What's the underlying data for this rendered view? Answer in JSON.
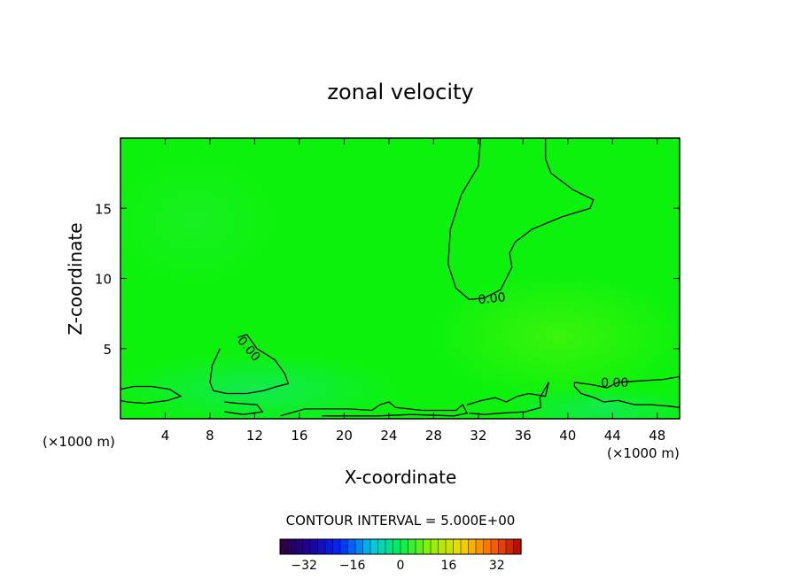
{
  "chart_data": {
    "type": "heatmap",
    "title": "zonal velocity",
    "xlabel": "X-coordinate",
    "ylabel": "Z-coordinate",
    "x_unit_left": "(×1000 m)",
    "x_unit_right": "(×1000 m)",
    "xlim": [
      0,
      50
    ],
    "ylim": [
      0,
      20
    ],
    "xticks": [
      4,
      8,
      12,
      16,
      20,
      24,
      28,
      32,
      36,
      40,
      44,
      48
    ],
    "yticks": [
      5,
      10,
      15
    ],
    "field_fill_color": "#0df20d",
    "contour_label": "0.00",
    "contours_zero": [
      {
        "points": [
          [
            32.2,
            20
          ],
          [
            32,
            18
          ],
          [
            30.5,
            16
          ],
          [
            29.5,
            13.5
          ],
          [
            29.3,
            11
          ],
          [
            30,
            9.3
          ],
          [
            31.2,
            8.5
          ],
          [
            32.5,
            8.6
          ],
          [
            34,
            9.2
          ],
          [
            34.5,
            10
          ],
          [
            35,
            10.8
          ],
          [
            34.8,
            11.8
          ],
          [
            35.3,
            12.6
          ],
          [
            36.8,
            13.5
          ],
          [
            39.5,
            14.4
          ],
          [
            42,
            15
          ],
          [
            42.3,
            15.6
          ],
          [
            40.5,
            16.3
          ],
          [
            38.5,
            17.5
          ],
          [
            38,
            18.5
          ],
          [
            38,
            20
          ]
        ]
      },
      {
        "points": [
          [
            10.5,
            5.8
          ],
          [
            11.3,
            6
          ],
          [
            12.2,
            5
          ],
          [
            13.8,
            4.2
          ],
          [
            14.7,
            3.2
          ],
          [
            15,
            2.5
          ],
          [
            14,
            2.3
          ],
          [
            12.8,
            2
          ],
          [
            11.3,
            1.8
          ],
          [
            9.5,
            1.8
          ],
          [
            8.3,
            2
          ],
          [
            8,
            2.6
          ],
          [
            8.2,
            3.8
          ],
          [
            8.9,
            5
          ]
        ]
      },
      {
        "points": [
          [
            0,
            2.1
          ],
          [
            1.2,
            2.3
          ],
          [
            2.8,
            2.3
          ],
          [
            4.4,
            2.1
          ],
          [
            5.4,
            1.6
          ],
          [
            4.2,
            1.3
          ],
          [
            2.2,
            1.1
          ],
          [
            0.6,
            1.2
          ],
          [
            0,
            1.3
          ]
        ]
      },
      {
        "points": [
          [
            9.3,
            1.2
          ],
          [
            10.5,
            1.1
          ],
          [
            12.2,
            1.0
          ],
          [
            12.7,
            0.5
          ],
          [
            11,
            0.3
          ],
          [
            9.3,
            0.5
          ]
        ]
      },
      {
        "points": [
          [
            14.3,
            0.2
          ],
          [
            16.5,
            0.7
          ],
          [
            20.5,
            0.7
          ],
          [
            22.5,
            0.6
          ],
          [
            23.2,
            1.0
          ],
          [
            24,
            1.2
          ],
          [
            24.6,
            0.8
          ],
          [
            27,
            0.6
          ],
          [
            30,
            0.6
          ],
          [
            30.6,
            1.0
          ],
          [
            31,
            0.4
          ],
          [
            29.8,
            0.2
          ],
          [
            26,
            0.3
          ],
          [
            23,
            0.2
          ],
          [
            18,
            0.2
          ]
        ]
      },
      {
        "points": [
          [
            31,
            1.0
          ],
          [
            32.3,
            1.3
          ],
          [
            33.5,
            1.5
          ],
          [
            34.5,
            1.2
          ],
          [
            35.5,
            1.6
          ],
          [
            36.5,
            1.8
          ],
          [
            38,
            1.6
          ],
          [
            38.3,
            2.6
          ],
          [
            37.5,
            1.5
          ],
          [
            37.6,
            0.8
          ],
          [
            36.2,
            0.5
          ],
          [
            34,
            0.4
          ],
          [
            32.5,
            0.3
          ],
          [
            31.2,
            0.4
          ]
        ]
      },
      {
        "points": [
          [
            50,
            3.0
          ],
          [
            48.5,
            2.8
          ],
          [
            46.5,
            2.7
          ],
          [
            44.5,
            2.6
          ],
          [
            43.5,
            2.2
          ],
          [
            42.4,
            2.4
          ],
          [
            40.6,
            2.6
          ],
          [
            40.6,
            2.3
          ],
          [
            41.2,
            1.8
          ],
          [
            42.4,
            1.5
          ],
          [
            43.2,
            1.2
          ],
          [
            44.5,
            1.3
          ],
          [
            46,
            1.0
          ],
          [
            47.5,
            1.0
          ],
          [
            49,
            0.9
          ],
          [
            50,
            0.8
          ]
        ]
      }
    ],
    "contour_labels": [
      {
        "text": "0.00",
        "x": 33.2,
        "y": 8.6,
        "angle": -6
      },
      {
        "text": "0.00",
        "x": 11.5,
        "y": 5.0,
        "angle": 50
      },
      {
        "text": "0.00",
        "x": 44.2,
        "y": 2.6,
        "angle": 0
      }
    ],
    "contour_interval_text": "CONTOUR INTERVAL = 5.000E+00",
    "colorbar": {
      "min": -40,
      "max": 40,
      "step": 2.5,
      "ticks": [
        -32,
        -16,
        0,
        16,
        32
      ],
      "tick_labels": [
        "−32",
        "−16",
        "0",
        "16",
        "32"
      ]
    }
  }
}
